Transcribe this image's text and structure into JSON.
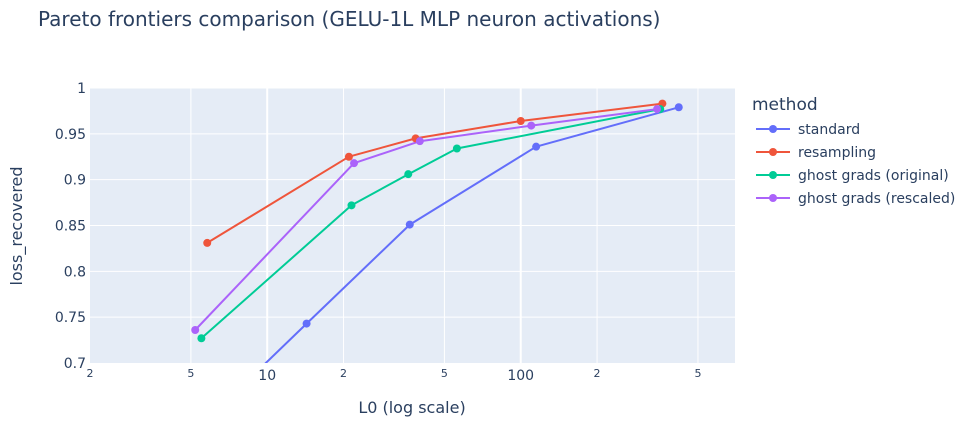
{
  "chart_data": {
    "type": "line",
    "title": "Pareto frontiers comparison (GELU-1L MLP neuron activations)",
    "xlabel": "L0 (log scale)",
    "ylabel": "loss_recovered",
    "x_scale": "log",
    "xlim": [
      2,
      700
    ],
    "ylim": [
      0.7,
      1.0
    ],
    "grid": true,
    "x_major_ticks": [
      {
        "value": 10,
        "label": "10"
      },
      {
        "value": 100,
        "label": "100"
      }
    ],
    "x_minor_ticks": [
      {
        "value": 2,
        "label": "2"
      },
      {
        "value": 5,
        "label": "5"
      },
      {
        "value": 20,
        "label": "2"
      },
      {
        "value": 50,
        "label": "5"
      },
      {
        "value": 200,
        "label": "2"
      },
      {
        "value": 500,
        "label": "5"
      }
    ],
    "y_ticks": [
      {
        "value": 0.7,
        "label": "0.7"
      },
      {
        "value": 0.75,
        "label": "0.75"
      },
      {
        "value": 0.8,
        "label": "0.8"
      },
      {
        "value": 0.85,
        "label": "0.85"
      },
      {
        "value": 0.9,
        "label": "0.9"
      },
      {
        "value": 0.95,
        "label": "0.95"
      },
      {
        "value": 1.0,
        "label": "1"
      }
    ],
    "legend": {
      "title": "method",
      "position": "right"
    },
    "series": [
      {
        "name": "standard",
        "color": "#636efa",
        "x": [
          9.3,
          14.3,
          36.5,
          115,
          420
        ],
        "y": [
          0.693,
          0.743,
          0.851,
          0.936,
          0.979
        ]
      },
      {
        "name": "resampling",
        "color": "#ef553b",
        "x": [
          5.8,
          21,
          38.5,
          100,
          362
        ],
        "y": [
          0.831,
          0.925,
          0.945,
          0.964,
          0.983
        ]
      },
      {
        "name": "ghost grads (original)",
        "color": "#00cc96",
        "x": [
          5.5,
          21.5,
          36,
          56,
          355
        ],
        "y": [
          0.727,
          0.872,
          0.906,
          0.934,
          0.977
        ]
      },
      {
        "name": "ghost grads (rescaled)",
        "color": "#ab63fa",
        "x": [
          5.2,
          22,
          40,
          110,
          345
        ],
        "y": [
          0.736,
          0.918,
          0.942,
          0.959,
          0.977
        ]
      }
    ]
  }
}
